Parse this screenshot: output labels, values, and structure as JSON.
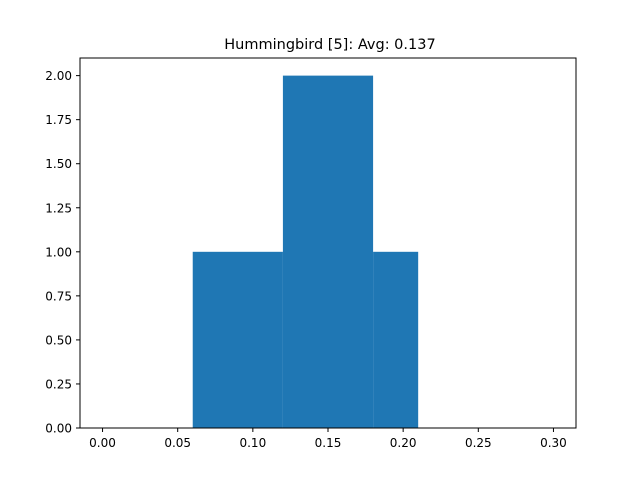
{
  "chart_data": {
    "type": "bar",
    "title": "Hummingbird [5]: Avg: 0.137",
    "xlabel": "",
    "ylabel": "",
    "xlim": [
      -0.015,
      0.315
    ],
    "ylim": [
      0,
      2.1
    ],
    "grid": false,
    "legend": "none",
    "bar_color": "#1f77b4",
    "bins": [
      {
        "x0": 0.06,
        "x1": 0.12,
        "value": 1
      },
      {
        "x0": 0.12,
        "x1": 0.18,
        "value": 2
      },
      {
        "x0": 0.18,
        "x1": 0.21,
        "value": 1
      }
    ],
    "x_ticks": [
      {
        "value": 0.0,
        "label": "0.00"
      },
      {
        "value": 0.05,
        "label": "0.05"
      },
      {
        "value": 0.1,
        "label": "0.10"
      },
      {
        "value": 0.15,
        "label": "0.15"
      },
      {
        "value": 0.2,
        "label": "0.20"
      },
      {
        "value": 0.25,
        "label": "0.25"
      },
      {
        "value": 0.3,
        "label": "0.30"
      }
    ],
    "y_ticks": [
      {
        "value": 0.0,
        "label": "0.00"
      },
      {
        "value": 0.25,
        "label": "0.25"
      },
      {
        "value": 0.5,
        "label": "0.50"
      },
      {
        "value": 0.75,
        "label": "0.75"
      },
      {
        "value": 1.0,
        "label": "1.00"
      },
      {
        "value": 1.25,
        "label": "1.25"
      },
      {
        "value": 1.5,
        "label": "1.50"
      },
      {
        "value": 1.75,
        "label": "1.75"
      },
      {
        "value": 2.0,
        "label": "2.00"
      }
    ]
  }
}
